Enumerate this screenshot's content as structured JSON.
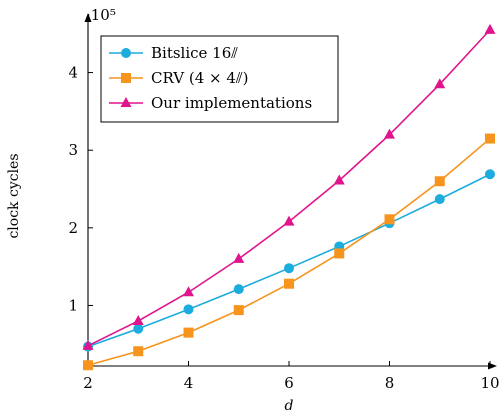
{
  "chart_data": {
    "type": "line",
    "title": "",
    "xlabel": "d",
    "ylabel": "clock cycles",
    "y_scale_label": "·10⁵",
    "xlim": [
      2,
      10
    ],
    "ylim": [
      0.22,
      4.6
    ],
    "x_ticks": [
      2,
      4,
      6,
      8,
      10
    ],
    "y_ticks": [
      1,
      2,
      3,
      4
    ],
    "legend_position": "top-left",
    "grid": false,
    "series": [
      {
        "name": "Bitslice 16⫽",
        "color": "#1cacde",
        "marker": "circle",
        "x": [
          2,
          3,
          4,
          5,
          6,
          7,
          8,
          9,
          10
        ],
        "y": [
          0.47,
          0.7,
          0.95,
          1.21,
          1.48,
          1.76,
          2.06,
          2.37,
          2.69
        ]
      },
      {
        "name": "CRV (4 × 4⫽)",
        "color": "#f7941d",
        "marker": "square",
        "x": [
          2,
          3,
          4,
          5,
          6,
          7,
          8,
          9,
          10
        ],
        "y": [
          0.23,
          0.41,
          0.65,
          0.94,
          1.28,
          1.67,
          2.11,
          2.6,
          3.15
        ]
      },
      {
        "name": "Our implementations",
        "color": "#e0148c",
        "marker": "triangle",
        "x": [
          2,
          3,
          4,
          5,
          6,
          7,
          8,
          9,
          10
        ],
        "y": [
          0.48,
          0.8,
          1.17,
          1.6,
          2.08,
          2.61,
          3.2,
          3.85,
          4.55
        ]
      }
    ]
  }
}
